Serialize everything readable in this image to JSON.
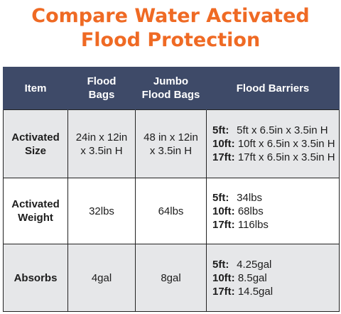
{
  "title": {
    "line1": "Compare Water Activated",
    "line2": "Flood Protection"
  },
  "table": {
    "headers": {
      "item": "Item",
      "flood_bags_1": "Flood",
      "flood_bags_2": "Bags",
      "jumbo_1": "Jumbo",
      "jumbo_2": "Flood Bags",
      "barriers": "Flood Barriers"
    },
    "rows": [
      {
        "item_1": "Activated",
        "item_2": "Size",
        "flood_bags_1": "24in x 12in",
        "flood_bags_2": "x 3.5in H",
        "jumbo_1": "48 in x 12in",
        "jumbo_2": "x 3.5in H",
        "barriers": [
          {
            "len": "5ft:",
            "value": "5ft x 6.5in x 3.5in H"
          },
          {
            "len": "10ft:",
            "value": "10ft x 6.5in x 3.5in H"
          },
          {
            "len": "17ft:",
            "value": "17ft x 6.5in x 3.5in H"
          }
        ]
      },
      {
        "item_1": "Activated",
        "item_2": "Weight",
        "flood_bags": "32lbs",
        "jumbo": "64lbs",
        "barriers": [
          {
            "len": "5ft:",
            "value": "34lbs"
          },
          {
            "len": "10ft:",
            "value": "68lbs"
          },
          {
            "len": "17ft:",
            "value": "116lbs"
          }
        ]
      },
      {
        "item": "Absorbs",
        "flood_bags": "4gal",
        "jumbo": "8gal",
        "barriers": [
          {
            "len": "5ft:",
            "value": "4.25gal"
          },
          {
            "len": "10ft:",
            "value": "8.5gal"
          },
          {
            "len": "17ft:",
            "value": "14.5gal"
          }
        ]
      }
    ]
  },
  "colors": {
    "title": "#ef6a24",
    "header_bg": "#3e4a68",
    "shaded_row": "#e6e7e9"
  }
}
